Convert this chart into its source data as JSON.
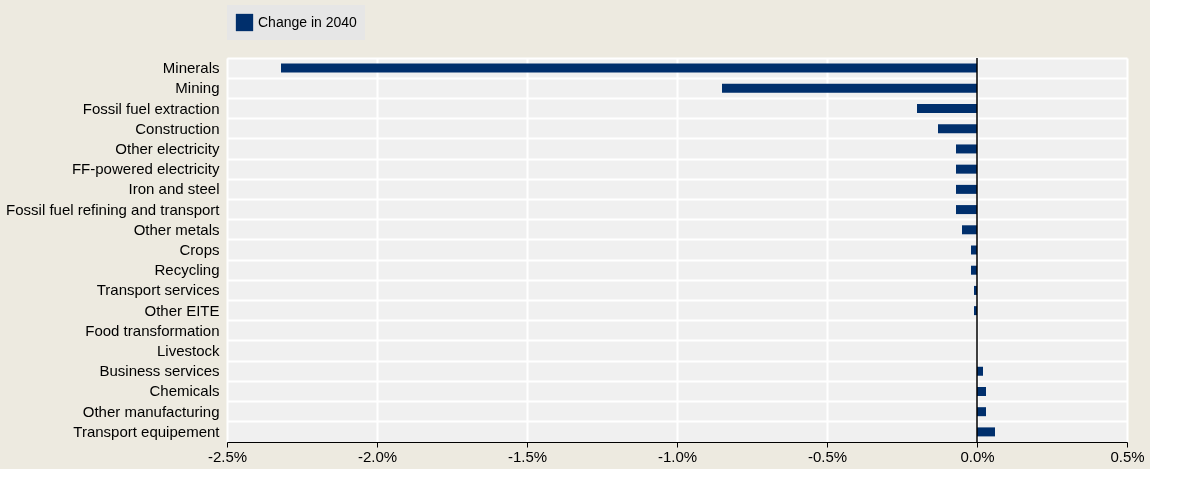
{
  "chart_data": {
    "type": "bar",
    "orientation": "horizontal",
    "categories": [
      "Minerals",
      "Mining",
      "Fossil fuel extraction",
      "Construction",
      "Other electricity",
      "FF-powered electricity",
      "Iron and steel",
      "Fossil fuel refining and transport",
      "Other metals",
      "Crops",
      "Recycling",
      "Transport services",
      "Other EITE",
      "Food transformation",
      "Livestock",
      "Business services",
      "Chemicals",
      "Other manufacturing",
      "Transport equipement"
    ],
    "series": [
      {
        "name": "Change in 2040",
        "color": "#002f6c",
        "values": [
          -2.32,
          -0.85,
          -0.2,
          -0.13,
          -0.07,
          -0.07,
          -0.07,
          -0.07,
          -0.05,
          -0.02,
          -0.02,
          -0.01,
          -0.01,
          0,
          0,
          0.02,
          0.03,
          0.03,
          0.06
        ]
      }
    ],
    "xlim": [
      -2.5,
      0.5
    ],
    "xticks": [
      {
        "value": -2.5,
        "label": "-2.5%"
      },
      {
        "value": -2.0,
        "label": "-2.0%"
      },
      {
        "value": -1.5,
        "label": "-1.5%"
      },
      {
        "value": -1.0,
        "label": "-1.0%"
      },
      {
        "value": -0.5,
        "label": "-0.5%"
      },
      {
        "value": 0,
        "label": "0.0%"
      },
      {
        "value": 0.5,
        "label": "0.5%"
      }
    ],
    "ref_lines": [
      {
        "axis": "x",
        "value": 0,
        "color": "#000000"
      }
    ],
    "grid": true,
    "legend": "top"
  }
}
